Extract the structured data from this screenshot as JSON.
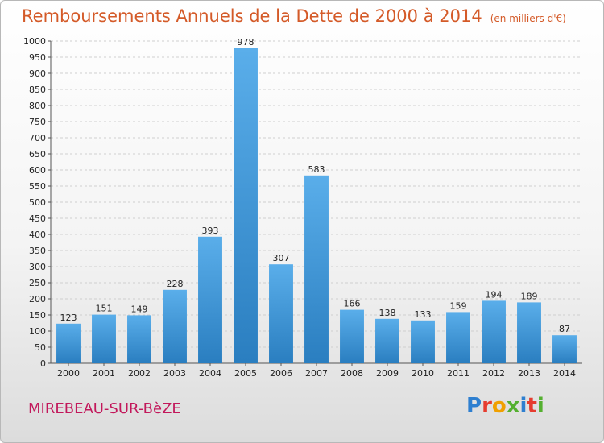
{
  "header": {
    "title": "Remboursements Annuels de la Dette de 2000 à 2014",
    "unit": "(en milliers d'€)"
  },
  "footer": {
    "city": "MIREBEAU-SUR-BèZE",
    "logo": "Proxiti",
    "logo_colors": [
      "#2e7fd0",
      "#e63c2f",
      "#f0a000",
      "#55b030",
      "#2e7fd0",
      "#e63c2f",
      "#55b030"
    ]
  },
  "colors": {
    "bar_light": "#5aaeea",
    "bar_dark": "#2a7ec0",
    "title": "#d45a28",
    "city": "#c2185b",
    "grid": "#cfcfcf"
  },
  "chart_data": {
    "type": "bar",
    "title": "Remboursements Annuels de la Dette de 2000 à 2014",
    "subtitle": "(en milliers d'€)",
    "categories": [
      "2000",
      "2001",
      "2002",
      "2003",
      "2004",
      "2005",
      "2006",
      "2007",
      "2008",
      "2009",
      "2010",
      "2011",
      "2012",
      "2013",
      "2014"
    ],
    "values": [
      123,
      151,
      149,
      228,
      393,
      978,
      307,
      583,
      166,
      138,
      133,
      159,
      194,
      189,
      87
    ],
    "ylim": [
      0,
      1000
    ],
    "ytick_step": 50,
    "grid": true,
    "legend": "none"
  }
}
